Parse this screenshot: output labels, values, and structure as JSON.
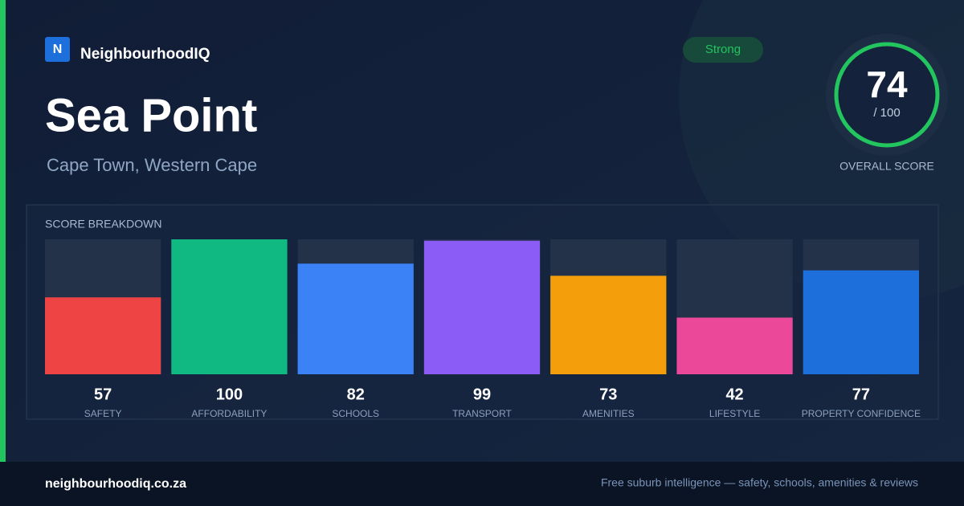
{
  "brand": {
    "logo": "N",
    "name": "NeighbourhoodIQ"
  },
  "badge": "Strong",
  "title": "Sea Point",
  "subtitle": "Cape Town, Western Cape",
  "score": {
    "value": 74,
    "max_label": "/ 100",
    "caption": "OVERALL SCORE"
  },
  "chart_data": {
    "type": "bar",
    "title": "SCORE BREAKDOWN",
    "categories": [
      "SAFETY",
      "AFFORDABILITY",
      "SCHOOLS",
      "TRANSPORT",
      "AMENITIES",
      "LIFESTYLE",
      "PROPERTY CONFIDENCE"
    ],
    "values": [
      57,
      100,
      82,
      99,
      73,
      42,
      77
    ],
    "colors": [
      "#ef4444",
      "#10b981",
      "#3b82f6",
      "#8b5cf6",
      "#f59e0b",
      "#ec4899",
      "#1d6fdc"
    ],
    "ylim": [
      0,
      100
    ]
  },
  "footer": {
    "url": "neighbourhoodiq.co.za",
    "tagline": "Free suburb intelligence — safety, schools, amenities & reviews"
  }
}
